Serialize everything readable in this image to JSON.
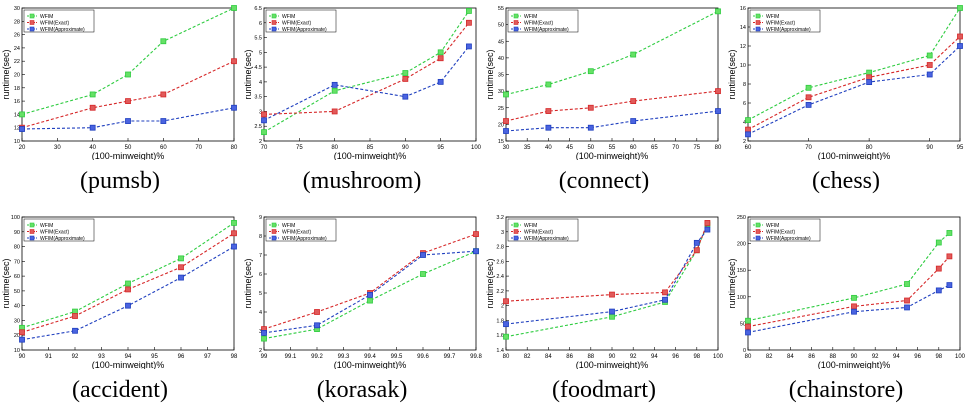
{
  "colors": {
    "wfim": "#2ecc40",
    "exact": "#d62728",
    "approx": "#1f3fbf",
    "axis": "#000000"
  },
  "legend_labels": [
    "WFIM",
    "WFIM(Exact)",
    "WFIM(Approximate)"
  ],
  "chart_data": [
    {
      "caption": "(pumsb)",
      "type": "line",
      "xlabel": "(100-minweight)%",
      "ylabel": "runtime(sec)",
      "xlim": [
        20,
        80
      ],
      "ylim": [
        10,
        30
      ],
      "xticks": [
        "20",
        "30",
        "40",
        "50",
        "60",
        "70",
        "80"
      ],
      "yticks": [
        "10",
        "12",
        "14",
        "16",
        "18",
        "20",
        "22",
        "24",
        "26",
        "28",
        "30"
      ],
      "legend_position": "top-left",
      "series": [
        {
          "name": "WFIM",
          "x": [
            20,
            40,
            50,
            60,
            80
          ],
          "y": [
            14,
            17,
            20,
            25,
            30
          ]
        },
        {
          "name": "WFIM(Exact)",
          "x": [
            20,
            40,
            50,
            60,
            80
          ],
          "y": [
            12,
            15,
            16,
            17,
            22
          ]
        },
        {
          "name": "WFIM(Approximate)",
          "x": [
            20,
            40,
            50,
            60,
            80
          ],
          "y": [
            11.8,
            12,
            13,
            13,
            15
          ]
        }
      ]
    },
    {
      "caption": "(mushroom)",
      "type": "line",
      "xlabel": "(100-minweight)%",
      "ylabel": "runtime(sec)",
      "xlim": [
        70,
        100
      ],
      "ylim": [
        2,
        6.5
      ],
      "xticks": [
        "70",
        "75",
        "80",
        "85",
        "90",
        "95",
        "100"
      ],
      "yticks": [
        "2",
        "2.5",
        "3",
        "3.5",
        "4",
        "4.5",
        "5",
        "5.5",
        "6",
        "6.5"
      ],
      "legend_position": "top-left",
      "series": [
        {
          "name": "WFIM",
          "x": [
            70,
            80,
            90,
            95,
            99
          ],
          "y": [
            2.3,
            3.7,
            4.3,
            5.0,
            6.4
          ]
        },
        {
          "name": "WFIM(Exact)",
          "x": [
            70,
            80,
            90,
            95,
            99
          ],
          "y": [
            2.9,
            3.0,
            4.1,
            4.8,
            6.0
          ]
        },
        {
          "name": "WFIM(Approximate)",
          "x": [
            70,
            80,
            90,
            95,
            99
          ],
          "y": [
            2.7,
            3.9,
            3.5,
            4.0,
            5.2
          ]
        }
      ]
    },
    {
      "caption": "(connect)",
      "type": "line",
      "xlabel": "(100-minweight)%",
      "ylabel": "runtime(sec)",
      "xlim": [
        30,
        80
      ],
      "ylim": [
        15,
        55
      ],
      "xticks": [
        "30",
        "35",
        "40",
        "45",
        "50",
        "55",
        "60",
        "65",
        "70",
        "75",
        "80"
      ],
      "yticks": [
        "15",
        "20",
        "25",
        "30",
        "35",
        "40",
        "45",
        "50",
        "55"
      ],
      "legend_position": "top-left",
      "series": [
        {
          "name": "WFIM",
          "x": [
            30,
            40,
            50,
            60,
            80
          ],
          "y": [
            29,
            32,
            36,
            41,
            54
          ]
        },
        {
          "name": "WFIM(Exact)",
          "x": [
            30,
            40,
            50,
            60,
            80
          ],
          "y": [
            21,
            24,
            25,
            27,
            30
          ]
        },
        {
          "name": "WFIM(Approximate)",
          "x": [
            30,
            40,
            50,
            60,
            80
          ],
          "y": [
            18,
            19,
            19,
            21,
            24
          ]
        }
      ]
    },
    {
      "caption": "(chess)",
      "type": "line",
      "xlabel": "(100-minweight)%",
      "ylabel": "runtime(sec)",
      "xlim": [
        60,
        95
      ],
      "ylim": [
        2,
        16
      ],
      "xticks": [
        "60",
        "70",
        "80",
        "90",
        "95"
      ],
      "yticks": [
        "2",
        "4",
        "6",
        "8",
        "10",
        "12",
        "14",
        "16"
      ],
      "legend_position": "top-left",
      "series": [
        {
          "name": "WFIM",
          "x": [
            60,
            70,
            80,
            90,
            95
          ],
          "y": [
            4.2,
            7.6,
            9.2,
            11,
            16
          ]
        },
        {
          "name": "WFIM(Exact)",
          "x": [
            60,
            70,
            80,
            90,
            95
          ],
          "y": [
            3.2,
            6.6,
            8.7,
            10,
            13
          ]
        },
        {
          "name": "WFIM(Approximate)",
          "x": [
            60,
            70,
            80,
            90,
            95
          ],
          "y": [
            2.7,
            5.8,
            8.2,
            9.0,
            12
          ]
        }
      ]
    },
    {
      "caption": "(accident)",
      "type": "line",
      "xlabel": "(100-minweight)%",
      "ylabel": "runtime(sec)",
      "xlim": [
        90,
        98
      ],
      "ylim": [
        10,
        100
      ],
      "xticks": [
        "90",
        "91",
        "92",
        "93",
        "94",
        "95",
        "96",
        "97",
        "98"
      ],
      "yticks": [
        "10",
        "20",
        "30",
        "40",
        "50",
        "60",
        "70",
        "80",
        "90",
        "100"
      ],
      "legend_position": "top-left",
      "series": [
        {
          "name": "WFIM",
          "x": [
            90,
            92,
            94,
            96,
            98
          ],
          "y": [
            25,
            36,
            55,
            72,
            96
          ]
        },
        {
          "name": "WFIM(Exact)",
          "x": [
            90,
            92,
            94,
            96,
            98
          ],
          "y": [
            22,
            33,
            51,
            66,
            89
          ]
        },
        {
          "name": "WFIM(Approximate)",
          "x": [
            90,
            92,
            94,
            96,
            98
          ],
          "y": [
            17,
            23,
            40,
            59,
            80
          ]
        }
      ]
    },
    {
      "caption": "(korasak)",
      "type": "line",
      "xlabel": "(100-minweight)%",
      "ylabel": "runtime(sec)",
      "xlim": [
        99,
        99.8
      ],
      "ylim": [
        2,
        9
      ],
      "xticks": [
        "99",
        "99.1",
        "99.2",
        "99.3",
        "99.4",
        "99.5",
        "99.6",
        "99.7",
        "99.8"
      ],
      "yticks": [
        "2",
        "3",
        "4",
        "5",
        "6",
        "7",
        "8",
        "9"
      ],
      "legend_position": "top-left",
      "series": [
        {
          "name": "WFIM",
          "x": [
            99,
            99.2,
            99.4,
            99.6,
            99.8
          ],
          "y": [
            2.6,
            3.1,
            4.6,
            6.0,
            7.2
          ]
        },
        {
          "name": "WFIM(Exact)",
          "x": [
            99,
            99.2,
            99.4,
            99.6,
            99.8
          ],
          "y": [
            3.1,
            4.0,
            5.0,
            7.1,
            8.1
          ]
        },
        {
          "name": "WFIM(Approximate)",
          "x": [
            99,
            99.2,
            99.4,
            99.6,
            99.8
          ],
          "y": [
            2.9,
            3.3,
            4.9,
            7.0,
            7.2
          ]
        }
      ]
    },
    {
      "caption": "(foodmart)",
      "type": "line",
      "xlabel": "(100-minweight)%",
      "ylabel": "runtime(sec)",
      "xlim": [
        80,
        100
      ],
      "ylim": [
        1.4,
        3.2
      ],
      "xticks": [
        "80",
        "82",
        "84",
        "86",
        "88",
        "90",
        "92",
        "94",
        "96",
        "98",
        "100"
      ],
      "yticks": [
        "1.4",
        "1.6",
        "1.8",
        "2",
        "2.2",
        "2.4",
        "2.6",
        "2.8",
        "3",
        "3.2"
      ],
      "legend_position": "top-left",
      "series": [
        {
          "name": "WFIM",
          "x": [
            80,
            90,
            95,
            98,
            99
          ],
          "y": [
            1.58,
            1.85,
            2.05,
            2.75,
            3.1
          ]
        },
        {
          "name": "WFIM(Exact)",
          "x": [
            80,
            90,
            95,
            98,
            99
          ],
          "y": [
            2.06,
            2.15,
            2.18,
            2.75,
            3.12
          ]
        },
        {
          "name": "WFIM(Approximate)",
          "x": [
            80,
            90,
            95,
            98,
            99
          ],
          "y": [
            1.75,
            1.92,
            2.08,
            2.85,
            3.03
          ]
        }
      ]
    },
    {
      "caption": "(chainstore)",
      "type": "line",
      "xlabel": "(100-minweight)%",
      "ylabel": "runtime(sec)",
      "xlim": [
        80,
        100
      ],
      "ylim": [
        0,
        250
      ],
      "xticks": [
        "80",
        "82",
        "84",
        "86",
        "88",
        "90",
        "92",
        "94",
        "96",
        "98",
        "100"
      ],
      "yticks": [
        "0",
        "50",
        "100",
        "150",
        "200",
        "250"
      ],
      "legend_position": "top-left",
      "series": [
        {
          "name": "WFIM",
          "x": [
            80,
            90,
            95,
            98,
            99
          ],
          "y": [
            55,
            98,
            124,
            202,
            220
          ]
        },
        {
          "name": "WFIM(Exact)",
          "x": [
            80,
            90,
            95,
            98,
            99
          ],
          "y": [
            44,
            82,
            93,
            153,
            176
          ]
        },
        {
          "name": "WFIM(Approximate)",
          "x": [
            80,
            90,
            95,
            98,
            99
          ],
          "y": [
            33,
            72,
            80,
            112,
            122
          ]
        }
      ]
    }
  ]
}
